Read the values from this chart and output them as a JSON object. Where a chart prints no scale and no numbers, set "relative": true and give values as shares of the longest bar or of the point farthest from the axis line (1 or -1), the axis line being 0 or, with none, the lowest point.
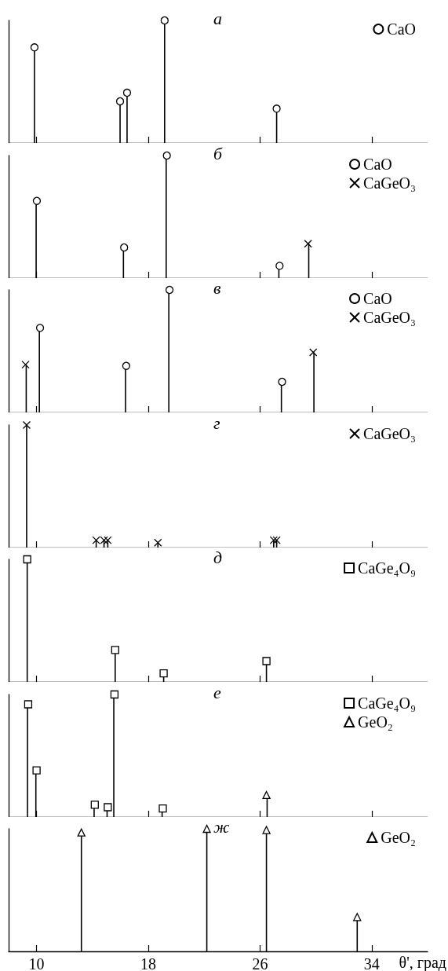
{
  "chart_data": [
    {
      "type": "lollipop",
      "relative": true,
      "xlim": [
        8,
        38
      ],
      "xticks": [
        10,
        18,
        26,
        34
      ],
      "tick_labels": false,
      "legend": "top right",
      "annotations": [
        "а"
      ],
      "series": [
        {
          "name": "CaO",
          "color": "#000000",
          "marker": "circle",
          "x": [
            9.85,
            15.98,
            16.48,
            19.17,
            27.19
          ],
          "values": [
            0.78,
            0.34,
            0.41,
            1,
            0.28
          ]
        }
      ]
    },
    {
      "type": "lollipop",
      "relative": true,
      "xlim": [
        8,
        38
      ],
      "xticks": [
        10,
        18,
        26,
        34
      ],
      "tick_labels": false,
      "legend": "top right",
      "annotations": [
        "б"
      ],
      "series": [
        {
          "name": "CaO",
          "color": "#000000",
          "marker": "circle",
          "x": [
            10.02,
            16.27,
            19.33,
            27.4
          ],
          "values": [
            0.63,
            0.25,
            1,
            0.1
          ]
        },
        {
          "name": "CaGeO₃",
          "color": "#000000",
          "marker": "cross",
          "x": [
            29.44
          ],
          "values": [
            0.28
          ]
        }
      ]
    },
    {
      "type": "lollipop",
      "relative": true,
      "xlim": [
        8,
        38
      ],
      "xticks": [
        10,
        18,
        26,
        34
      ],
      "tick_labels": false,
      "legend": "top right",
      "annotations": [
        "в"
      ],
      "series": [
        {
          "name": "CaO",
          "color": "#000000",
          "marker": "circle",
          "x": [
            10.25,
            16.42,
            19.52,
            27.58
          ],
          "values": [
            0.69,
            0.38,
            1,
            0.25
          ]
        },
        {
          "name": "CaGeO₃",
          "color": "#000000",
          "marker": "cross",
          "x": [
            9.21,
            29.81
          ],
          "values": [
            0.39,
            0.49
          ]
        }
      ]
    },
    {
      "type": "lollipop",
      "relative": true,
      "xlim": [
        8,
        38
      ],
      "xticks": [
        10,
        18,
        26,
        34
      ],
      "tick_labels": false,
      "legend": "top right",
      "annotations": [
        "г"
      ],
      "series": [
        {
          "name": "CaGeO₃",
          "color": "#000000",
          "marker": "cross",
          "x": [
            9.29,
            14.27,
            14.83,
            15.1,
            18.69,
            26.98,
            27.19
          ],
          "values": [
            1,
            0.06,
            0.06,
            0.06,
            0.04,
            0.06,
            0.06
          ]
        }
      ]
    },
    {
      "type": "lollipop",
      "relative": true,
      "xlim": [
        8,
        38
      ],
      "xticks": [
        10,
        18,
        26,
        34
      ],
      "tick_labels": false,
      "legend": "top right",
      "annotations": [
        "д"
      ],
      "series": [
        {
          "name": "CaGe₄O₉",
          "color": "#000000",
          "marker": "square",
          "x": [
            9.33,
            15.63,
            19.1,
            26.46
          ],
          "values": [
            1,
            0.26,
            0.07,
            0.17
          ]
        }
      ]
    },
    {
      "type": "lollipop",
      "relative": true,
      "xlim": [
        8,
        38
      ],
      "xticks": [
        10,
        18,
        26,
        34
      ],
      "tick_labels": false,
      "legend": "top right",
      "annotations": [
        "е"
      ],
      "series": [
        {
          "name": "CaGe₄O₉",
          "color": "#000000",
          "marker": "square",
          "x": [
            9.4,
            10.0,
            14.17,
            15.1,
            15.58,
            19.04
          ],
          "values": [
            0.92,
            0.38,
            0.1,
            0.08,
            1,
            0.07
          ]
        },
        {
          "name": "GeO₂",
          "color": "#000000",
          "marker": "triangle",
          "x": [
            26.46
          ],
          "values": [
            0.18
          ]
        }
      ]
    },
    {
      "type": "lollipop",
      "relative": true,
      "xlim": [
        8,
        38
      ],
      "xticks": [
        10,
        18,
        26,
        34
      ],
      "tick_labels": "x",
      "xlabel": "θ', град",
      "legend": "top right",
      "annotations": [
        "ж"
      ],
      "series": [
        {
          "name": "GeO₂",
          "color": "#000000",
          "marker": "triangle",
          "x": [
            13.21,
            22.19,
            26.46,
            32.96
          ],
          "values": [
            0.97,
            1,
            0.99,
            0.28
          ]
        }
      ]
    }
  ]
}
